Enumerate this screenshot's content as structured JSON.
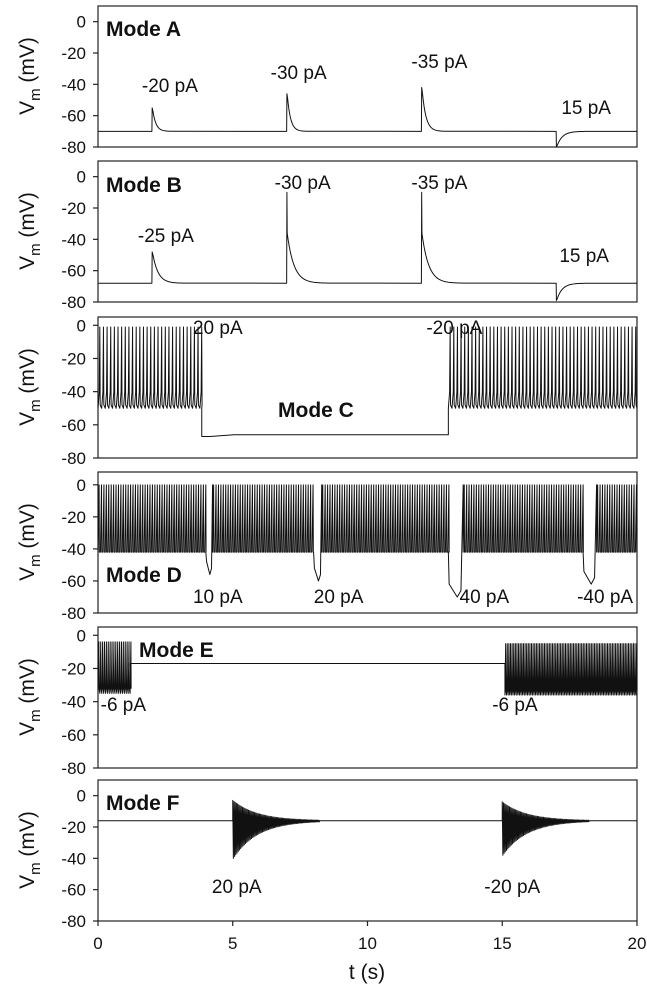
{
  "chart_data": [
    {
      "type": "line",
      "panel": "A",
      "mode_label": "Mode A",
      "ylabel": "V",
      "ylabel_sub": "m",
      "ylabel_unit": " (mV)",
      "ylim": [
        -80,
        10
      ],
      "yticks": [
        0,
        -20,
        -40,
        -60,
        -80
      ],
      "ytick_labels": [
        "0",
        "-20",
        "-40",
        "-60",
        "-80"
      ],
      "xlim": [
        0,
        20
      ],
      "baseline": -70,
      "events": [
        {
          "t": 2,
          "peak": -55,
          "kind": "up",
          "tau": 0.12,
          "label": "-20 pA"
        },
        {
          "t": 7,
          "peak": -46,
          "kind": "up",
          "tau": 0.12,
          "label": "-30 pA"
        },
        {
          "t": 12,
          "peak": -42,
          "kind": "up",
          "tau": 0.14,
          "label": "-35 pA"
        },
        {
          "t": 17,
          "peak": -80,
          "kind": "down",
          "tau": 0.2,
          "label": "15 pA"
        }
      ]
    },
    {
      "type": "line",
      "panel": "B",
      "mode_label": "Mode B",
      "ylabel": "V",
      "ylabel_sub": "m",
      "ylabel_unit": " (mV)",
      "ylim": [
        -80,
        10
      ],
      "yticks": [
        0,
        -20,
        -40,
        -60,
        -80
      ],
      "ytick_labels": [
        "0",
        "-20",
        "-40",
        "-60",
        "-80"
      ],
      "xlim": [
        0,
        20
      ],
      "baseline": -68,
      "events": [
        {
          "t": 2,
          "peak": -48,
          "kind": "up",
          "tau": 0.2,
          "label": "-25 pA"
        },
        {
          "t": 7,
          "peak": -10,
          "kind": "spike",
          "tau": 0.25,
          "label": "-30 pA"
        },
        {
          "t": 12,
          "peak": -10,
          "kind": "spike",
          "tau": 0.25,
          "label": "-35 pA"
        },
        {
          "t": 17,
          "peak": -79,
          "kind": "down",
          "tau": 0.2,
          "label": "15 pA"
        }
      ]
    },
    {
      "type": "line",
      "panel": "C",
      "mode_label": "Mode C",
      "ylabel": "V",
      "ylabel_sub": "m",
      "ylabel_unit": " (mV)",
      "ylim": [
        -80,
        5
      ],
      "yticks": [
        0,
        -20,
        -40,
        -60,
        -80
      ],
      "ytick_labels": [
        "0",
        "-20",
        "-40",
        "-60",
        "-80"
      ],
      "xlim": [
        0,
        20
      ],
      "segments": [
        {
          "t0": 0,
          "t1": 3.85,
          "kind": "spiking",
          "period": 0.135,
          "high": -1,
          "low": -50
        },
        {
          "t0": 3.85,
          "t1": 13,
          "kind": "rest",
          "level": -66,
          "start": -67
        },
        {
          "t0": 13,
          "t1": 20,
          "kind": "spiking",
          "period": 0.135,
          "high": -1,
          "low": -50
        }
      ],
      "annotations": [
        {
          "t": 4,
          "label": "20 pA"
        },
        {
          "t": 13,
          "label": "-20 pA"
        }
      ]
    },
    {
      "type": "line",
      "panel": "D",
      "mode_label": "Mode D",
      "ylabel": "V",
      "ylabel_sub": "m",
      "ylabel_unit": " (mV)",
      "ylim": [
        -80,
        8
      ],
      "yticks": [
        0,
        -20,
        -40,
        -60,
        -80
      ],
      "ytick_labels": [
        "0",
        "-20",
        "-40",
        "-60",
        "-80"
      ],
      "xlim": [
        0,
        20
      ],
      "burst": {
        "period": 0.09,
        "high": 0,
        "low": -42
      },
      "dips": [
        {
          "t": 4,
          "depth": -56,
          "dur": 0.25,
          "label": "10 pA"
        },
        {
          "t": 8,
          "depth": -60,
          "dur": 0.3,
          "label": "20 pA"
        },
        {
          "t": 13,
          "depth": -70,
          "dur": 0.55,
          "label": "40 pA"
        },
        {
          "t": 18,
          "depth": -62,
          "dur": 0.5,
          "label": "-40 pA"
        }
      ]
    },
    {
      "type": "line",
      "panel": "E",
      "mode_label": "Mode E",
      "ylabel": "V",
      "ylabel_sub": "m",
      "ylabel_unit": " (mV)",
      "ylim": [
        -80,
        5
      ],
      "yticks": [
        0,
        -20,
        -40,
        -60,
        -80
      ],
      "ytick_labels": [
        "0",
        "-20",
        "-40",
        "-60",
        "-80"
      ],
      "xlim": [
        0,
        20
      ],
      "segments": [
        {
          "t0": 0,
          "t1": 1.2,
          "kind": "burst",
          "period": 0.07,
          "high": -4,
          "low": -35
        },
        {
          "t0": 1.2,
          "t1": 15.1,
          "kind": "flat",
          "level": -17
        },
        {
          "t0": 15.1,
          "t1": 20,
          "kind": "burst",
          "period": 0.06,
          "high": -5,
          "low": -36
        }
      ],
      "annotations": [
        {
          "t": 1.2,
          "label": "-6 pA"
        },
        {
          "t": 15.1,
          "label": "-6 pA"
        }
      ]
    },
    {
      "type": "line",
      "panel": "F",
      "mode_label": "Mode F",
      "ylabel": "V",
      "ylabel_sub": "m",
      "ylabel_unit": " (mV)",
      "ylim": [
        -80,
        10
      ],
      "yticks": [
        0,
        -20,
        -40,
        -60,
        -80
      ],
      "ytick_labels": [
        "0",
        "-20",
        "-40",
        "-60",
        "-80"
      ],
      "xlim": [
        0,
        20
      ],
      "xticks": [
        0,
        5,
        10,
        15,
        20
      ],
      "xtick_labels": [
        "0",
        "5",
        "10",
        "15",
        "20"
      ],
      "xlabel": "t (s)",
      "baseline": -16,
      "ringing": [
        {
          "t": 5,
          "amp_up": 13,
          "amp_down": 24,
          "decay": 0.9,
          "period": 0.045,
          "label": "20 pA"
        },
        {
          "t": 15,
          "amp_up": 12,
          "amp_down": 22,
          "decay": 0.9,
          "period": 0.045,
          "label": "-20 pA"
        }
      ]
    }
  ]
}
